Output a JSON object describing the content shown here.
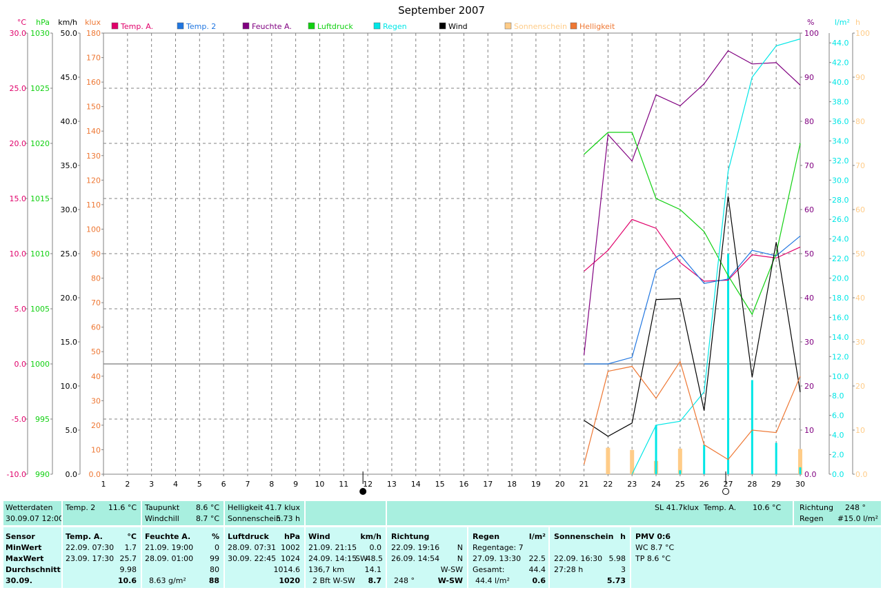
{
  "chart_data": {
    "type": "line",
    "title": "September 2007",
    "x": [
      1,
      2,
      3,
      4,
      5,
      6,
      7,
      8,
      9,
      10,
      11,
      12,
      13,
      14,
      15,
      16,
      17,
      18,
      19,
      20,
      21,
      22,
      23,
      24,
      25,
      26,
      27,
      28,
      29,
      30
    ],
    "legend": [
      {
        "name": "Temp. A.",
        "color": "#e0006a"
      },
      {
        "name": "Temp. 2",
        "color": "#2076e0"
      },
      {
        "name": "Feuchte A.",
        "color": "#800080"
      },
      {
        "name": "Luftdruck",
        "color": "#10d010"
      },
      {
        "name": "Regen",
        "color": "#00e6e6"
      },
      {
        "name": "Wind",
        "color": "#000000"
      },
      {
        "name": "Sonnenschein",
        "color": "#ffcc88"
      },
      {
        "name": "Helligkeit",
        "color": "#ee7733"
      }
    ],
    "axes": {
      "temp": {
        "unit": "°C",
        "min": -10,
        "max": 30,
        "step": 5,
        "color": "#e0006a",
        "labels": [
          "-10.0",
          "-5.0",
          "0.0",
          "5.0",
          "10.0",
          "15.0",
          "20.0",
          "25.0",
          "30.0"
        ]
      },
      "pressure": {
        "unit": "hPa",
        "min": 990,
        "max": 1030,
        "step": 5,
        "color": "#10d010",
        "labels": [
          "990",
          "995",
          "1000",
          "1005",
          "1010",
          "1015",
          "1020",
          "1025",
          "1030"
        ]
      },
      "wind": {
        "unit": "km/h",
        "min": 0,
        "max": 50,
        "step": 5,
        "color": "#000000",
        "labels": [
          "0.0",
          "5.0",
          "10.0",
          "15.0",
          "20.0",
          "25.0",
          "30.0",
          "35.0",
          "40.0",
          "45.0",
          "50.0"
        ]
      },
      "light": {
        "unit": "klux",
        "min": 0,
        "max": 180,
        "step": 10,
        "color": "#ee7733",
        "labels": [
          "0.0",
          "10",
          "20",
          "30",
          "40",
          "50",
          "60",
          "70",
          "80",
          "90",
          "100",
          "110",
          "120",
          "130",
          "140",
          "150",
          "160",
          "170",
          "180"
        ]
      },
      "humidity": {
        "unit": "%",
        "min": 0,
        "max": 100,
        "step": 10,
        "color": "#800080",
        "labels": [
          "0.0",
          "10",
          "20",
          "30",
          "40",
          "50",
          "60",
          "70",
          "80",
          "90",
          "100"
        ]
      },
      "rain": {
        "unit": "l/m²",
        "min": 0,
        "max": 45,
        "step": 2,
        "color": "#00e6e6",
        "labels": [
          "0.0",
          "2.0",
          "4.0",
          "6.0",
          "8.0",
          "10.0",
          "12.0",
          "14.0",
          "16.0",
          "18.0",
          "20.0",
          "22.0",
          "24.0",
          "26.0",
          "28.0",
          "30.0",
          "32.0",
          "34.0",
          "36.0",
          "38.0",
          "40.0",
          "42.0",
          "44.0"
        ]
      },
      "sun": {
        "unit": "h",
        "min": 0,
        "max": 100,
        "step": 10,
        "color": "#ffcc88",
        "labels": [
          "0.0",
          "10",
          "20",
          "30",
          "40",
          "50",
          "60",
          "70",
          "80",
          "90",
          "100"
        ]
      }
    },
    "series": [
      {
        "key": "temp_a",
        "axis": "temp",
        "color": "#e0006a",
        "points": [
          [
            21,
            8.4
          ],
          [
            22,
            10.3
          ],
          [
            23,
            13.1
          ],
          [
            24,
            12.3
          ],
          [
            25,
            9.2
          ],
          [
            26,
            7.5
          ],
          [
            27,
            7.6
          ],
          [
            28,
            9.9
          ],
          [
            29,
            9.6
          ],
          [
            30,
            10.6
          ]
        ]
      },
      {
        "key": "temp_2",
        "axis": "temp",
        "color": "#2076e0",
        "points": [
          [
            21,
            0.0
          ],
          [
            22,
            0.0
          ],
          [
            23,
            0.6
          ],
          [
            24,
            8.5
          ],
          [
            25,
            9.9
          ],
          [
            26,
            7.3
          ],
          [
            27,
            7.7
          ],
          [
            28,
            10.3
          ],
          [
            29,
            9.8
          ],
          [
            30,
            11.6
          ]
        ]
      },
      {
        "key": "feuchte",
        "axis": "humidity",
        "color": "#800080",
        "points": [
          [
            21,
            27
          ],
          [
            22,
            77
          ],
          [
            23,
            71
          ],
          [
            24,
            86
          ],
          [
            25,
            83.5
          ],
          [
            26,
            88.5
          ],
          [
            27,
            96
          ],
          [
            28,
            93
          ],
          [
            29,
            93.3
          ],
          [
            30,
            88.2
          ]
        ]
      },
      {
        "key": "luftdruck",
        "axis": "pressure",
        "color": "#10d010",
        "points": [
          [
            21,
            1019
          ],
          [
            22,
            1021
          ],
          [
            23,
            1021
          ],
          [
            24,
            1015
          ],
          [
            25,
            1014
          ],
          [
            26,
            1012
          ],
          [
            27,
            1008
          ],
          [
            28,
            1004.5
          ],
          [
            29,
            1010
          ],
          [
            30,
            1020
          ]
        ]
      },
      {
        "key": "regen_sum",
        "axis": "rain",
        "color": "#00e6e6",
        "points": [
          [
            23,
            0
          ],
          [
            24,
            5.0
          ],
          [
            25,
            5.4
          ],
          [
            26,
            8.4
          ],
          [
            27,
            30.9
          ],
          [
            28,
            40.5
          ],
          [
            29,
            43.7
          ],
          [
            30,
            44.4
          ]
        ]
      },
      {
        "key": "wind",
        "axis": "wind",
        "color": "#000000",
        "points": [
          [
            21,
            6.1
          ],
          [
            22,
            4.3
          ],
          [
            23,
            5.8
          ],
          [
            24,
            19.8
          ],
          [
            25,
            19.9
          ],
          [
            26,
            7.2
          ],
          [
            27,
            31.5
          ],
          [
            28,
            11.0
          ],
          [
            29,
            26.3
          ],
          [
            30,
            9.3
          ]
        ]
      },
      {
        "key": "helligkeit",
        "axis": "light",
        "color": "#ee7733",
        "points": [
          [
            21,
            4
          ],
          [
            22,
            42
          ],
          [
            23,
            44
          ],
          [
            24,
            31
          ],
          [
            25,
            46
          ],
          [
            26,
            12
          ],
          [
            27,
            6
          ],
          [
            28,
            18
          ],
          [
            29,
            17
          ],
          [
            30,
            40
          ]
        ]
      }
    ],
    "rain_bars": [
      [
        24,
        5.0
      ],
      [
        25,
        0.4
      ],
      [
        26,
        3.0
      ],
      [
        27,
        22.5
      ],
      [
        28,
        9.6
      ],
      [
        29,
        3.2
      ],
      [
        30,
        0.7
      ]
    ],
    "sun_bars": [
      [
        22,
        6
      ],
      [
        23,
        5.5
      ],
      [
        24,
        3
      ],
      [
        25,
        5.8
      ],
      [
        30,
        5.7
      ]
    ],
    "moon_markers": [
      {
        "day": 11.8,
        "phase": "full"
      },
      {
        "day": 26.9,
        "phase": "new"
      }
    ]
  },
  "table": {
    "top": {
      "wetterdaten": {
        "label": "Wetterdaten",
        "datetime": "30.09.07 12:00"
      },
      "temp2": {
        "label": "Temp. 2",
        "value": "11.6 °C"
      },
      "taupunkt": {
        "label": "Taupunkt",
        "value": "8.6 °C",
        "label2": "Windchill",
        "value2": "8.7 °C"
      },
      "helligkeit": {
        "label": "Helligkeit",
        "value": "41.7 klux",
        "label2": "Sonnenschein",
        "value2": "5.73 h"
      },
      "sl": {
        "text": "SL 41.7klux",
        "label": "Temp. A.",
        "value": "10.6 °C"
      },
      "richtung": {
        "label": "Richtung",
        "value": "248 °",
        "label2": "Regen",
        "value2": "#15.0 l/m²"
      }
    },
    "sensor": {
      "head": "Sensor",
      "rows": [
        "MinWert",
        "MaxWert",
        "Durchschnitt",
        "30.09."
      ]
    },
    "temp_a": {
      "head": "Temp. A.",
      "unit": "°C",
      "min_time": "22.09.  07:30",
      "min_val": "1.7",
      "max_time": "23.09.  17:30",
      "max_val": "25.7",
      "avg": "9.98",
      "now": "10.6"
    },
    "feuchte": {
      "head": "Feuchte A.",
      "unit": "%",
      "min_time": "21.09.  19:00",
      "min_val": "0",
      "max_time": "28.09.  01:00",
      "max_val": "99",
      "avg": "80",
      "now_left": "8.63 g/m²",
      "now": "88"
    },
    "luftdruck": {
      "head": "Luftdruck",
      "unit": "hPa",
      "min_time": "28.09.  07:31",
      "min_val": "1002",
      "max_time": "30.09.  22:45",
      "max_val": "1024",
      "avg": "1014.6",
      "now": "1020"
    },
    "wind": {
      "head": "Wind",
      "unit": "km/h",
      "min_time": "21.09.  21:15",
      "min_val": "0.0",
      "max_time": "24.09.  14:15",
      "max_dir": "SW",
      "max_val": "48.5",
      "avg_left": "136,7 km",
      "avg": "14.1",
      "now_left": "2 Bft W-SW",
      "now": "8.7"
    },
    "richtung": {
      "head": "Richtung",
      "min_time": "22.09.  19:16",
      "min_val": "N",
      "max_time": "26.09.  14:54",
      "max_val": "N",
      "avg": "W-SW",
      "now_left": "248 °",
      "now": "W-SW"
    },
    "regen": {
      "head": "Regen",
      "unit": "l/m²",
      "row1": "Regentage: 7",
      "max_time": "27.09.  13:30",
      "max_val": "22.5",
      "avg_left": "Gesamt:",
      "avg": "44.4",
      "now_left": "44.4 l/m²",
      "now": "0.6"
    },
    "sonne": {
      "head": "Sonnenschein",
      "unit": "h",
      "max_time": "22.09.  16:30",
      "max_val": "5.98",
      "avg_left": "27:28 h",
      "avg": "3",
      "now": "5.73"
    },
    "pmv": {
      "head": "PMV 0:6",
      "wc": "WC 8.7 °C",
      "tp": "TP 8.6 °C"
    }
  }
}
